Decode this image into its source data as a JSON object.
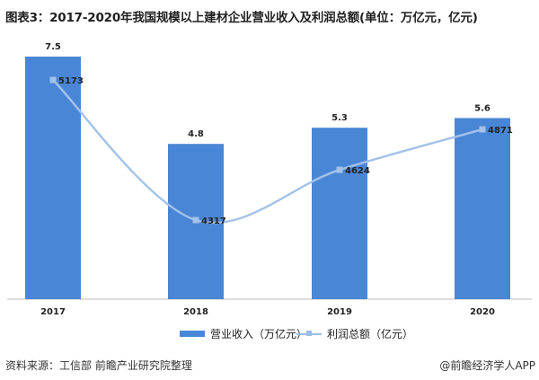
{
  "title": "图表3：2017-2020年我国规模以上建材企业营业收入及利润总额(单位：万亿元，亿元)",
  "footer": {
    "source": "资料来源：工信部 前瞻产业研究院整理",
    "credit": "@前瞻经济学人APP"
  },
  "colors": {
    "bar": "#4a86d6",
    "line": "#a3c2e8",
    "marker": "#a3c2e8"
  },
  "chart_data": {
    "type": "bar",
    "categories": [
      "2017",
      "2018",
      "2019",
      "2020"
    ],
    "series": [
      {
        "name": "营业收入（万亿元）",
        "type": "bar",
        "values": [
          7.5,
          4.8,
          5.3,
          5.6
        ],
        "labels": [
          "7.5",
          "4.8",
          "5.3",
          "5.6"
        ]
      },
      {
        "name": "利润总额（亿元）",
        "type": "line",
        "values": [
          5173,
          4317,
          4624,
          4871
        ],
        "labels": [
          "5173",
          "4317",
          "4624",
          "4871"
        ]
      }
    ],
    "legend_position": "bottom",
    "grid": false
  }
}
